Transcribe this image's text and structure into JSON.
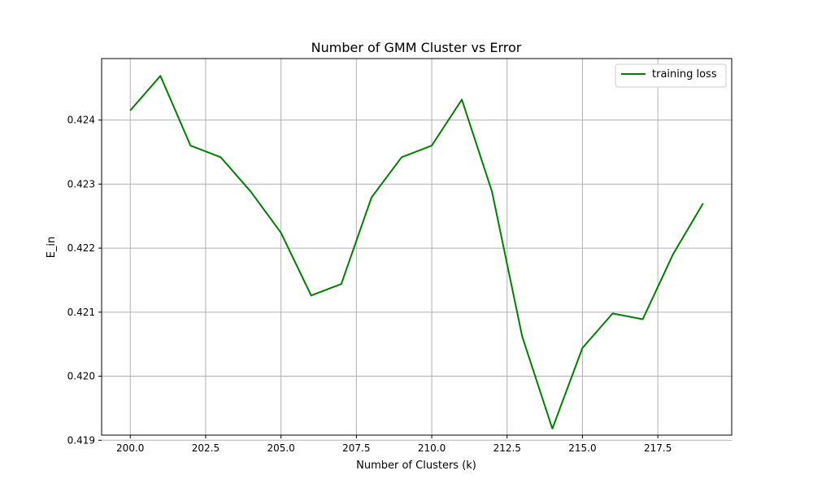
{
  "chart_data": {
    "type": "line",
    "title": "Number of GMM Cluster vs Error",
    "xlabel": "Number of Clusters (k)",
    "ylabel": "E_in",
    "xlim": [
      199.05,
      219.95
    ],
    "ylim": [
      0.41908,
      0.42496
    ],
    "xticks": [
      200.0,
      202.5,
      205.0,
      207.5,
      210.0,
      212.5,
      215.0,
      217.5
    ],
    "xtick_labels": [
      "200.0",
      "202.5",
      "205.0",
      "207.5",
      "210.0",
      "212.5",
      "215.0",
      "217.5"
    ],
    "yticks": [
      0.419,
      0.42,
      0.421,
      0.422,
      0.423,
      0.424
    ],
    "ytick_labels": [
      "0.419",
      "0.420",
      "0.421",
      "0.422",
      "0.423",
      "0.424"
    ],
    "grid": true,
    "legend_position": "top-right",
    "series": [
      {
        "name": "training loss",
        "color": "#008000",
        "x": [
          200,
          201,
          202,
          203,
          204,
          205,
          206,
          207,
          208,
          209,
          210,
          211,
          212,
          213,
          214,
          215,
          216,
          217,
          218,
          219
        ],
        "y": [
          0.42415,
          0.42469,
          0.4236,
          0.42342,
          0.42288,
          0.42224,
          0.42126,
          0.42144,
          0.42279,
          0.42342,
          0.4236,
          0.42432,
          0.42288,
          0.42062,
          0.41918,
          0.42044,
          0.42098,
          0.42089,
          0.4219,
          0.4227
        ]
      }
    ]
  }
}
